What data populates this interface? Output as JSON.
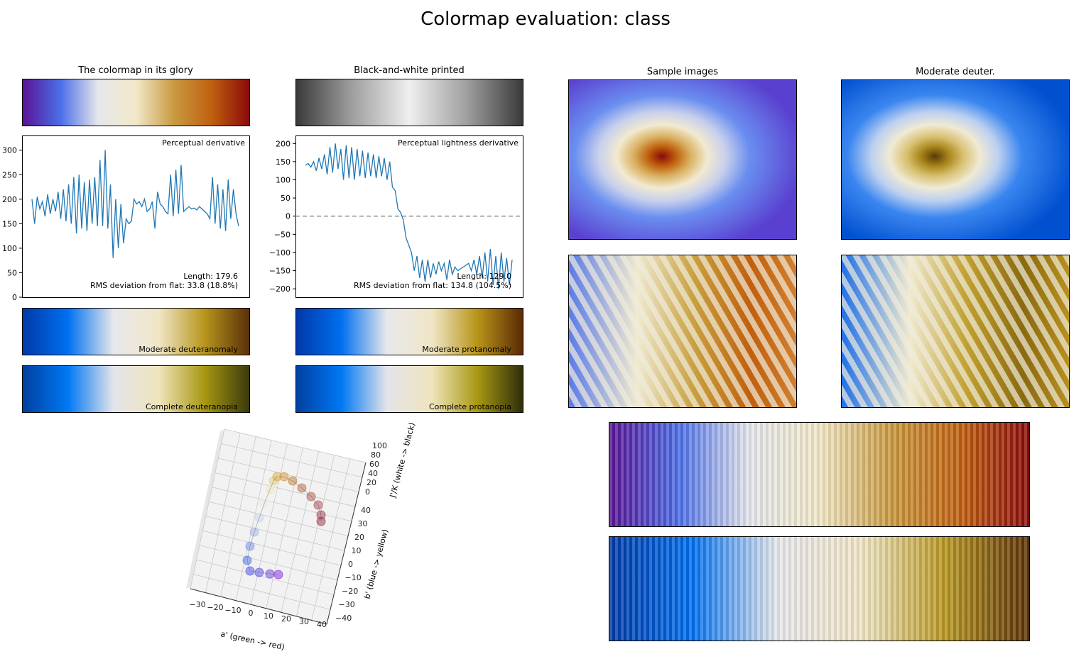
{
  "figure": {
    "title": "Colormap evaluation: class"
  },
  "panels": {
    "glory_title": "The colormap in its glory",
    "bw_title": "Black-and-white printed",
    "samples_title": "Sample images",
    "deuter_title": "Moderate deuter.",
    "mod_deuteranomaly": "Moderate deuteranomaly",
    "complete_deuteranopia": "Complete deuteranopia",
    "mod_protanomaly": "Moderate protanomaly",
    "complete_protanopia": "Complete protanopia"
  },
  "colormaps": {
    "glory": [
      "#5a1496",
      "#4b6ee8",
      "#e6e7ec",
      "#f2e8c8",
      "#c99a40",
      "#c0600e",
      "#8a0a0a"
    ],
    "bw": [
      "#3a3a3a",
      "#a0a0a0",
      "#efefef",
      "#a0a0a0",
      "#3a3a3a"
    ],
    "mod_deuteranomaly": [
      "#003aa8",
      "#0070f0",
      "#e8e8ec",
      "#f0e6c6",
      "#b8961e",
      "#5a3008"
    ],
    "complete_deuteranopia": [
      "#0040a0",
      "#0078f4",
      "#e4e4ea",
      "#efe4bc",
      "#a89812",
      "#3a3a0c"
    ],
    "mod_protanomaly": [
      "#0038a8",
      "#0070f0",
      "#e8e8ec",
      "#f0e6c6",
      "#b89418",
      "#5a2a06"
    ],
    "complete_protanopia": [
      "#0040a0",
      "#0078f4",
      "#e4e4ea",
      "#efe4bc",
      "#a89812",
      "#2e2e0a"
    ]
  },
  "chart_data": [
    {
      "type": "line",
      "title": "Perceptual derivative",
      "ylim": [
        0,
        330
      ],
      "yticks": [
        "0",
        "50",
        "100",
        "150",
        "200",
        "250",
        "300"
      ],
      "color": "#1f77b4",
      "values": [
        200,
        150,
        205,
        180,
        195,
        165,
        210,
        170,
        200,
        175,
        215,
        160,
        220,
        155,
        230,
        150,
        245,
        130,
        250,
        140,
        235,
        135,
        240,
        150,
        245,
        145,
        280,
        145,
        300,
        140,
        230,
        80,
        200,
        100,
        190,
        110,
        160,
        150,
        155,
        200,
        190,
        195,
        185,
        200,
        175,
        180,
        195,
        140,
        215,
        190,
        185,
        175,
        170,
        250,
        165,
        260,
        170,
        270,
        175,
        180,
        185,
        180,
        182,
        178,
        185,
        180,
        175,
        170,
        160,
        245,
        150,
        230,
        140,
        220,
        135,
        240,
        160,
        220,
        170,
        145
      ],
      "annotations": [
        "Length: 179.6",
        "RMS deviation from flat: 33.8 (18.8%)"
      ]
    },
    {
      "type": "line",
      "title": "Perceptual lightness derivative",
      "ylim": [
        -223,
        222
      ],
      "yticks": [
        "200",
        "150",
        "100",
        "50",
        "0",
        "−50",
        "−100",
        "−150",
        "−200"
      ],
      "color": "#1f77b4",
      "reference_line": 0,
      "values": [
        140,
        145,
        135,
        150,
        125,
        160,
        130,
        170,
        115,
        190,
        120,
        200,
        130,
        185,
        100,
        195,
        105,
        190,
        100,
        185,
        110,
        180,
        105,
        175,
        110,
        170,
        105,
        165,
        110,
        160,
        100,
        150,
        80,
        70,
        20,
        10,
        -10,
        -60,
        -80,
        -100,
        -150,
        -110,
        -170,
        -120,
        -180,
        -120,
        -170,
        -130,
        -160,
        -125,
        -150,
        -130,
        -175,
        -120,
        -160,
        -140,
        -150,
        -145,
        -140,
        -135,
        -130,
        -150,
        -120,
        -160,
        -110,
        -170,
        -100,
        -180,
        -90,
        -190,
        -110,
        -200,
        -100,
        -180,
        -115,
        -190,
        -120
      ],
      "annotations": [
        "Length: 129.0",
        "RMS deviation from flat: 134.8 (104.5%)"
      ]
    },
    {
      "type": "scatter3d",
      "xlabel": "a' (green -> red)",
      "ylabel": "b' (blue -> yellow)",
      "zlabel": "J'/K (white -> black)",
      "xticks": [
        "−30",
        "−20",
        "−10",
        "0",
        "10",
        "20",
        "30",
        "40"
      ],
      "yticks": [
        "40",
        "30",
        "20",
        "10",
        "0",
        "−10",
        "−20",
        "−30",
        "−40"
      ],
      "zticks": [
        "100",
        "80",
        "60",
        "40",
        "20",
        "0"
      ]
    }
  ]
}
